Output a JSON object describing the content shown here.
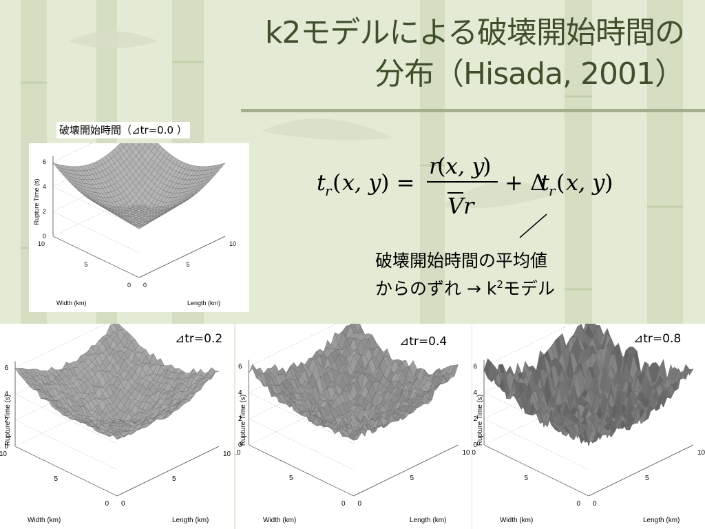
{
  "slide": {
    "title_line1": "k2モデルによる破壊開始時間の",
    "title_line2": "分布（Hisada, 2001）",
    "panel_label": "破壊開始時間（⊿tr=0.0 ）",
    "annotation": {
      "line1": "破壊開始時間の平均値",
      "line2_prefix": "からのずれ → k",
      "line2_sup": "2",
      "line2_suffix": "モデル"
    },
    "formula": {
      "lhs": "t_r(x, y) =",
      "numerator": "r(x, y)",
      "denominator": "V̄r",
      "plus_term": "+ Δt_r(x, y)"
    }
  },
  "plots": [
    {
      "id": "dtr-0.0",
      "label": "",
      "zlabel": "Rupture Time (s)",
      "xlabel": "Length (km)",
      "ylabel": "Width (km)",
      "z_ticks": [
        "0",
        "2",
        "4",
        "6"
      ],
      "x_ticks": [
        "0",
        "5",
        "10"
      ],
      "y_ticks": [
        "0",
        "5",
        "10"
      ],
      "roughness": 0.0
    },
    {
      "id": "dtr-0.2",
      "label": "⊿tr=0.2",
      "zlabel": "Rupture Time (s)",
      "xlabel": "Length (km)",
      "ylabel": "Width (km)",
      "z_ticks": [
        "0",
        "2",
        "4",
        "6"
      ],
      "x_ticks": [
        "0",
        "5",
        "10"
      ],
      "y_ticks": [
        "0",
        "5",
        "10"
      ],
      "roughness": 0.2
    },
    {
      "id": "dtr-0.4",
      "label": "⊿tr=0.4",
      "zlabel": "Rupture Time (s)",
      "xlabel": "Length (km)",
      "ylabel": "Width (km)",
      "z_ticks": [
        "0",
        "2",
        "4",
        "6"
      ],
      "x_ticks": [
        "0",
        "5",
        "10"
      ],
      "y_ticks": [
        "0",
        "5",
        "10"
      ],
      "roughness": 0.4
    },
    {
      "id": "dtr-0.8",
      "label": "⊿tr=0.8",
      "zlabel": "Rupture Time (s)",
      "xlabel": "Length (km)",
      "ylabel": "Width (km)",
      "z_ticks": [
        "0",
        "2",
        "4",
        "6"
      ],
      "x_ticks": [
        "0",
        "5",
        "10"
      ],
      "y_ticks": [
        "0",
        "5",
        "10"
      ],
      "roughness": 0.8
    }
  ]
}
